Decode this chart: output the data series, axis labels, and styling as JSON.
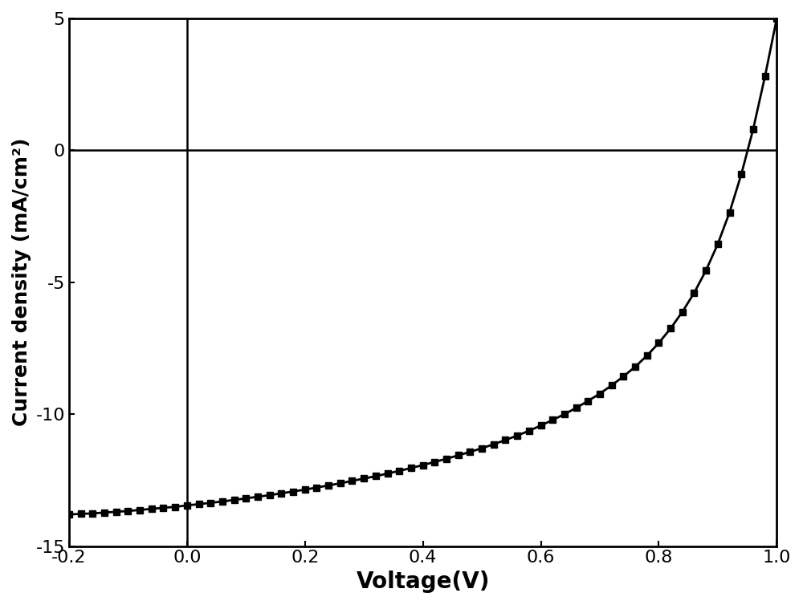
{
  "title": "",
  "xlabel": "Voltage(V)",
  "ylabel": "Current density (mA/cm²)",
  "xlim": [
    -0.2,
    1.0
  ],
  "ylim": [
    -15,
    5
  ],
  "xticks": [
    -0.2,
    0.0,
    0.2,
    0.4,
    0.6,
    0.8,
    1.0
  ],
  "yticks": [
    -15,
    -10,
    -5,
    0,
    5
  ],
  "background_color": "#ffffff",
  "line_color": "#000000",
  "marker": "s",
  "marker_color": "#000000",
  "marker_size": 6,
  "line_width": 2.0,
  "xlabel_fontsize": 20,
  "ylabel_fontsize": 18,
  "tick_fontsize": 16,
  "data_points": {
    "voltage": [
      -0.2,
      -0.18,
      -0.16,
      -0.14,
      -0.12,
      -0.1,
      -0.08,
      -0.06,
      -0.04,
      -0.02,
      0.0,
      0.02,
      0.04,
      0.06,
      0.08,
      0.1,
      0.12,
      0.14,
      0.16,
      0.18,
      0.2,
      0.22,
      0.24,
      0.26,
      0.28,
      0.3,
      0.32,
      0.34,
      0.36,
      0.38,
      0.4,
      0.42,
      0.44,
      0.46,
      0.48,
      0.5,
      0.52,
      0.54,
      0.56,
      0.58,
      0.6,
      0.62,
      0.64,
      0.66,
      0.68,
      0.7,
      0.72,
      0.74,
      0.76,
      0.78,
      0.8,
      0.82,
      0.84,
      0.86,
      0.88,
      0.9,
      0.92,
      0.94,
      0.96,
      0.98,
      1.0
    ],
    "current": [
      -13.8,
      -13.78,
      -13.76,
      -13.73,
      -13.7,
      -13.67,
      -13.63,
      -13.59,
      -13.55,
      -13.51,
      -13.46,
      -13.41,
      -13.36,
      -13.31,
      -13.25,
      -13.19,
      -13.13,
      -13.07,
      -13.0,
      -12.93,
      -12.86,
      -12.78,
      -12.7,
      -12.62,
      -12.53,
      -12.44,
      -12.35,
      -12.25,
      -12.15,
      -12.04,
      -11.93,
      -11.81,
      -11.69,
      -11.56,
      -11.43,
      -11.29,
      -11.14,
      -10.98,
      -10.81,
      -10.63,
      -10.43,
      -10.22,
      -10.0,
      -9.76,
      -9.5,
      -9.22,
      -8.91,
      -8.57,
      -8.2,
      -7.78,
      -7.3,
      -6.75,
      -6.12,
      -5.4,
      -4.55,
      -3.55,
      -2.35,
      -0.9,
      0.8,
      2.8,
      5.0
    ]
  }
}
